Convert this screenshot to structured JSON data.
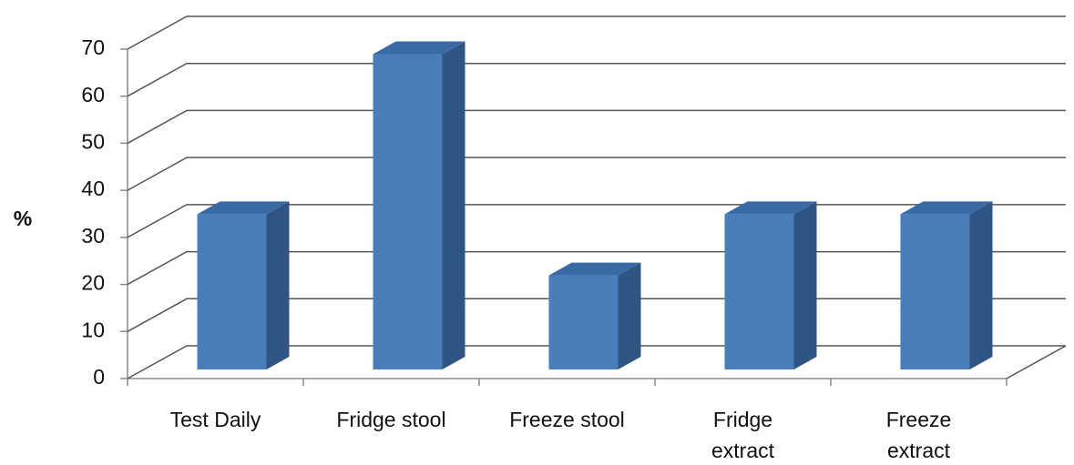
{
  "chart_data": {
    "type": "bar3d",
    "y_label": "%",
    "categories": [
      "Test Daily",
      "Fridge stool",
      "Freeze stool",
      "Fridge\nextract",
      "Freeze\nextract"
    ],
    "values": [
      33,
      67,
      20,
      33,
      33
    ],
    "color": "#4a7ebb",
    "ylim": [
      0,
      70
    ],
    "yticks": [
      0,
      10,
      20,
      30,
      40,
      50,
      60,
      70
    ],
    "grid": true
  }
}
